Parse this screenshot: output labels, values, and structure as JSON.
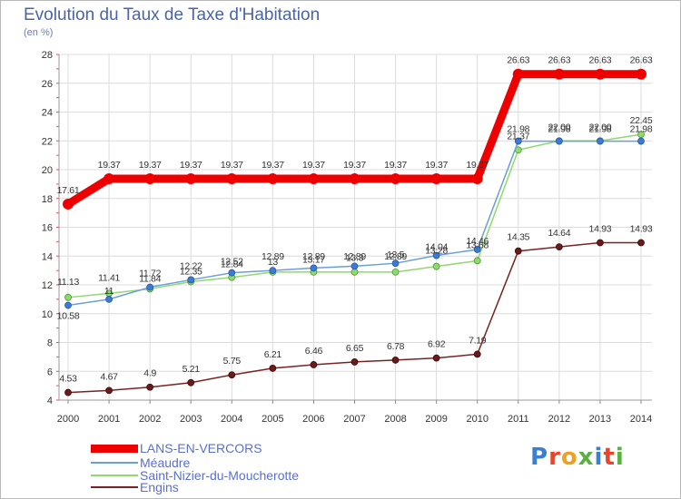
{
  "header": {
    "title": "Evolution du Taux de Taxe d'Habitation",
    "subtitle": "(en %)"
  },
  "logo": {
    "text": "Proxiti",
    "colors": [
      "#3a7fd0",
      "#e8462a",
      "#f0a020",
      "#5ab040",
      "#3a7fd0",
      "#e8462a",
      "#5ab040"
    ]
  },
  "chart_data": {
    "type": "line",
    "title": "Evolution du Taux de Taxe d'Habitation",
    "subtitle": "(en %)",
    "x": [
      "2000",
      "2001",
      "2002",
      "2003",
      "2004",
      "2005",
      "2006",
      "2007",
      "2008",
      "2009",
      "2010",
      "2011",
      "2012",
      "2013",
      "2014"
    ],
    "ylim": [
      4,
      28
    ],
    "yticks": [
      "4",
      "6",
      "8",
      "10",
      "12",
      "14",
      "16",
      "18",
      "20",
      "22",
      "24",
      "26",
      "28"
    ],
    "grid": true,
    "legend_placement": "bottom-left",
    "series": [
      {
        "name": "LANS-EN-VERCORS",
        "color": "#ee0000",
        "values": [
          17.61,
          19.37,
          19.37,
          19.37,
          19.37,
          19.37,
          19.37,
          19.37,
          19.37,
          19.37,
          19.37,
          26.63,
          26.63,
          26.63,
          26.63
        ],
        "labels": [
          "17.61",
          "19.37",
          "19.37",
          "19.37",
          "19.37",
          "19.37",
          "19.37",
          "19.37",
          "19.37",
          "19.37",
          "19.37",
          "26.63",
          "26.63",
          "26.63",
          "26.63"
        ]
      },
      {
        "name": "Méaudre",
        "color": "#6a9fd8",
        "values": [
          10.58,
          11.0,
          11.84,
          12.35,
          12.84,
          13.0,
          13.17,
          13.3,
          13.5,
          14.04,
          14.46,
          21.98,
          21.98,
          21.98,
          21.98
        ],
        "labels": [
          "10.58",
          "11",
          "11.84",
          "12.35",
          "12.84",
          "13",
          "13.17",
          "13.3",
          "13.5",
          "14.04",
          "14.46",
          "21.98",
          "21.98",
          "21.98",
          "21.98"
        ]
      },
      {
        "name": "Saint-Nizier-du-Moucherotte",
        "color": "#90d870",
        "values": [
          11.13,
          11.41,
          11.72,
          12.22,
          12.52,
          12.89,
          12.89,
          12.89,
          12.89,
          13.28,
          13.68,
          21.37,
          22.0,
          22.0,
          22.45
        ],
        "labels": [
          "11.13",
          "11.41",
          "11.72",
          "12.22",
          "12.52",
          "12.89",
          "12.89",
          "12.89",
          "12.89",
          "13.28",
          "13.68",
          "21.37",
          "22.00",
          "22.00",
          "22.45"
        ]
      },
      {
        "name": "Engins",
        "color": "#7a2222",
        "values": [
          4.53,
          4.67,
          4.9,
          5.21,
          5.75,
          6.21,
          6.46,
          6.65,
          6.78,
          6.92,
          7.19,
          14.35,
          14.64,
          14.93,
          14.93
        ],
        "labels": [
          "4.53",
          "4.67",
          "4.9",
          "5.21",
          "5.75",
          "6.21",
          "6.46",
          "6.65",
          "6.78",
          "6.92",
          "7.19",
          "14.35",
          "14.64",
          "14.93",
          "14.93"
        ]
      }
    ]
  }
}
